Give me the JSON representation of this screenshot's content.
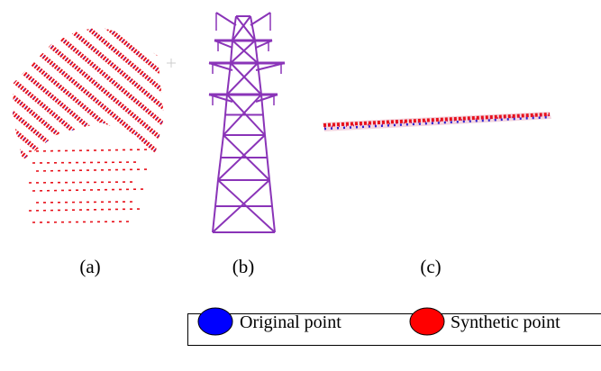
{
  "panels": [
    {
      "label": "(a)"
    },
    {
      "label": "(b)"
    },
    {
      "label": "(c)"
    }
  ],
  "legend": [
    {
      "label": "Original point",
      "color": "#0000ff"
    },
    {
      "label": "Synthetic point",
      "color": "#ff0000"
    }
  ]
}
